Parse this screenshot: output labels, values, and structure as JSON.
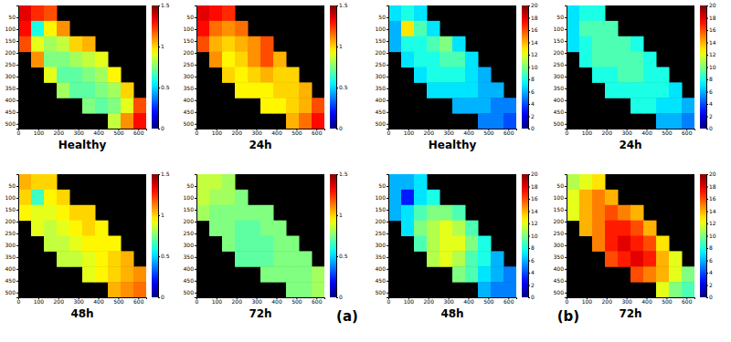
{
  "chart_data": [
    {
      "type": "heatmap",
      "title": "Healthy",
      "annotations": [
        "(a)"
      ],
      "x": [
        32,
        96,
        160,
        224,
        288,
        352,
        416,
        480,
        544,
        608
      ],
      "y": [
        32.5,
        97.5,
        162.5,
        227.5,
        292.5,
        357.5,
        422.5,
        487.5
      ],
      "xlim": [
        0,
        640
      ],
      "ylim": [
        520,
        0
      ],
      "xticks": [
        0,
        100,
        200,
        300,
        400,
        500,
        600
      ],
      "yticks": [
        50,
        100,
        150,
        200,
        250,
        300,
        350,
        400,
        450,
        500
      ],
      "colorbar": {
        "range": [
          0,
          1.5
        ],
        "ticks": [
          0,
          0.5,
          1,
          1.5
        ]
      },
      "values": [
        [
          1.35,
          1.25,
          1.2,
          null,
          null,
          null,
          null,
          null,
          null,
          null
        ],
        [
          1.3,
          0.6,
          0.95,
          1.1,
          null,
          null,
          null,
          null,
          null,
          null
        ],
        [
          1.2,
          0.9,
          0.8,
          0.85,
          1,
          1.05,
          null,
          null,
          null,
          null
        ],
        [
          null,
          1.1,
          0.75,
          0.75,
          0.8,
          0.85,
          0.9,
          null,
          null,
          null
        ],
        [
          null,
          null,
          0.9,
          0.7,
          0.7,
          0.75,
          0.8,
          0.95,
          null,
          null
        ],
        [
          null,
          null,
          null,
          0.8,
          0.7,
          0.7,
          0.75,
          0.8,
          1,
          null
        ],
        [
          null,
          null,
          null,
          null,
          null,
          0.75,
          0.7,
          0.75,
          0.9,
          1.2
        ],
        [
          null,
          null,
          null,
          null,
          null,
          null,
          null,
          0.85,
          1.1,
          1.3
        ]
      ]
    },
    {
      "type": "heatmap",
      "title": "24h",
      "x": [
        32,
        96,
        160,
        224,
        288,
        352,
        416,
        480,
        544,
        608
      ],
      "y": [
        32.5,
        97.5,
        162.5,
        227.5,
        292.5,
        357.5,
        422.5,
        487.5
      ],
      "xlim": [
        0,
        640
      ],
      "ylim": [
        520,
        0
      ],
      "xticks": [
        0,
        100,
        200,
        300,
        400,
        500,
        600
      ],
      "yticks": [
        50,
        100,
        150,
        200,
        250,
        300,
        350,
        400,
        450,
        500
      ],
      "colorbar": {
        "range": [
          0,
          1.5
        ],
        "ticks": [
          0,
          0.5,
          1,
          1.5
        ]
      },
      "values": [
        [
          1.35,
          1.3,
          1.25,
          null,
          null,
          null,
          null,
          null,
          null,
          null
        ],
        [
          1.3,
          1.15,
          1.1,
          1.15,
          null,
          null,
          null,
          null,
          null,
          null
        ],
        [
          1.2,
          1.05,
          1,
          1.05,
          1.1,
          1.2,
          null,
          null,
          null,
          null
        ],
        [
          null,
          1.1,
          0.95,
          1,
          1.1,
          1.2,
          1.05,
          null,
          null,
          null
        ],
        [
          null,
          null,
          1,
          0.95,
          1,
          1.05,
          1,
          1,
          null,
          null
        ],
        [
          null,
          null,
          null,
          0.95,
          0.95,
          0.95,
          1,
          1,
          1.05,
          null
        ],
        [
          null,
          null,
          null,
          null,
          null,
          0.95,
          0.95,
          1,
          1.05,
          1.2
        ],
        [
          null,
          null,
          null,
          null,
          null,
          null,
          null,
          1.05,
          1.15,
          1.3
        ]
      ]
    },
    {
      "type": "heatmap",
      "title": "48h",
      "x": [
        32,
        96,
        160,
        224,
        288,
        352,
        416,
        480,
        544,
        608
      ],
      "y": [
        32.5,
        97.5,
        162.5,
        227.5,
        292.5,
        357.5,
        422.5,
        487.5
      ],
      "xlim": [
        0,
        640
      ],
      "ylim": [
        520,
        0
      ],
      "xticks": [
        0,
        100,
        200,
        300,
        400,
        500,
        600
      ],
      "yticks": [
        50,
        100,
        150,
        200,
        250,
        300,
        350,
        400,
        450,
        500
      ],
      "colorbar": {
        "range": [
          0,
          1.5
        ],
        "ticks": [
          0,
          0.5,
          1,
          1.5
        ]
      },
      "values": [
        [
          1.05,
          1,
          1,
          null,
          null,
          null,
          null,
          null,
          null,
          null
        ],
        [
          1,
          0.65,
          0.95,
          1,
          null,
          null,
          null,
          null,
          null,
          null
        ],
        [
          0.95,
          0.9,
          0.9,
          0.95,
          1,
          1,
          null,
          null,
          null,
          null
        ],
        [
          null,
          0.9,
          0.85,
          0.9,
          0.95,
          1,
          0.95,
          null,
          null,
          null
        ],
        [
          null,
          null,
          0.85,
          0.85,
          0.9,
          0.95,
          0.95,
          0.95,
          null,
          null
        ],
        [
          null,
          null,
          null,
          0.85,
          0.85,
          0.9,
          0.95,
          1,
          1.05,
          null
        ],
        [
          null,
          null,
          null,
          null,
          null,
          0.9,
          0.95,
          1,
          1.05,
          1.1
        ],
        [
          null,
          null,
          null,
          null,
          null,
          null,
          null,
          1.05,
          1.1,
          1.15
        ]
      ]
    },
    {
      "type": "heatmap",
      "title": "72h",
      "x": [
        32,
        96,
        160,
        224,
        288,
        352,
        416,
        480,
        544,
        608
      ],
      "y": [
        32.5,
        97.5,
        162.5,
        227.5,
        292.5,
        357.5,
        422.5,
        487.5
      ],
      "xlim": [
        0,
        640
      ],
      "ylim": [
        520,
        0
      ],
      "xticks": [
        0,
        100,
        200,
        300,
        400,
        500,
        600
      ],
      "yticks": [
        50,
        100,
        150,
        200,
        250,
        300,
        350,
        400,
        450,
        500
      ],
      "colorbar": {
        "range": [
          0,
          1.5
        ],
        "ticks": [
          0,
          0.5,
          1,
          1.5
        ]
      },
      "values": [
        [
          0.85,
          0.85,
          0.8,
          null,
          null,
          null,
          null,
          null,
          null,
          null
        ],
        [
          0.85,
          0.8,
          0.8,
          0.75,
          null,
          null,
          null,
          null,
          null,
          null
        ],
        [
          0.8,
          0.75,
          0.75,
          0.75,
          0.75,
          0.75,
          null,
          null,
          null,
          null
        ],
        [
          null,
          0.75,
          0.75,
          0.7,
          0.7,
          0.75,
          0.75,
          null,
          null,
          null
        ],
        [
          null,
          null,
          0.75,
          0.7,
          0.7,
          0.7,
          0.75,
          0.75,
          null,
          null
        ],
        [
          null,
          null,
          null,
          0.7,
          0.7,
          0.7,
          0.75,
          0.75,
          0.75,
          null
        ],
        [
          null,
          null,
          null,
          null,
          null,
          0.75,
          0.75,
          0.75,
          0.75,
          0.8
        ],
        [
          null,
          null,
          null,
          null,
          null,
          null,
          null,
          0.75,
          0.75,
          0.8
        ]
      ]
    },
    {
      "type": "heatmap",
      "title": "Healthy",
      "annotations": [
        "(b)"
      ],
      "x": [
        32,
        96,
        160,
        224,
        288,
        352,
        416,
        480,
        544,
        608
      ],
      "y": [
        32.5,
        97.5,
        162.5,
        227.5,
        292.5,
        357.5,
        422.5,
        487.5
      ],
      "xlim": [
        0,
        640
      ],
      "ylim": [
        520,
        0
      ],
      "xticks": [
        0,
        100,
        200,
        300,
        400,
        500,
        600
      ],
      "yticks": [
        50,
        100,
        150,
        200,
        250,
        300,
        350,
        400,
        450,
        500
      ],
      "colorbar": {
        "range": [
          0,
          20
        ],
        "ticks": [
          0,
          2,
          4,
          6,
          8,
          10,
          12,
          14,
          16,
          18,
          20
        ]
      },
      "values": [
        [
          7,
          8,
          7,
          null,
          null,
          null,
          null,
          null,
          null,
          null
        ],
        [
          6,
          13,
          9,
          7,
          null,
          null,
          null,
          null,
          null,
          null
        ],
        [
          6,
          8,
          8,
          9,
          10,
          7,
          null,
          null,
          null,
          null
        ],
        [
          null,
          7,
          8,
          8,
          9,
          9,
          7,
          null,
          null,
          null
        ],
        [
          null,
          null,
          7,
          8,
          8,
          8,
          7,
          6,
          null,
          null
        ],
        [
          null,
          null,
          null,
          7,
          7,
          7,
          7,
          6,
          6,
          null
        ],
        [
          null,
          null,
          null,
          null,
          null,
          6,
          6,
          6,
          5,
          5
        ],
        [
          null,
          null,
          null,
          null,
          null,
          null,
          null,
          5,
          5,
          4
        ]
      ]
    },
    {
      "type": "heatmap",
      "title": "24h",
      "x": [
        32,
        96,
        160,
        224,
        288,
        352,
        416,
        480,
        544,
        608
      ],
      "y": [
        32.5,
        97.5,
        162.5,
        227.5,
        292.5,
        357.5,
        422.5,
        487.5
      ],
      "xlim": [
        0,
        640
      ],
      "ylim": [
        520,
        0
      ],
      "xticks": [
        0,
        100,
        200,
        300,
        400,
        500,
        600
      ],
      "yticks": [
        50,
        100,
        150,
        200,
        250,
        300,
        350,
        400,
        450,
        500
      ],
      "colorbar": {
        "range": [
          0,
          20
        ],
        "ticks": [
          0,
          2,
          4,
          6,
          8,
          10,
          12,
          14,
          16,
          18,
          20
        ]
      },
      "values": [
        [
          7,
          8,
          8,
          null,
          null,
          null,
          null,
          null,
          null,
          null
        ],
        [
          7,
          9,
          9,
          9,
          null,
          null,
          null,
          null,
          null,
          null
        ],
        [
          7,
          8,
          9,
          9,
          9,
          8,
          null,
          null,
          null,
          null
        ],
        [
          null,
          8,
          9,
          9,
          9,
          9,
          8,
          null,
          null,
          null
        ],
        [
          null,
          null,
          8,
          8,
          9,
          9,
          8,
          8,
          null,
          null
        ],
        [
          null,
          null,
          null,
          8,
          8,
          8,
          8,
          8,
          7,
          null
        ],
        [
          null,
          null,
          null,
          null,
          null,
          8,
          8,
          7,
          7,
          6
        ],
        [
          null,
          null,
          null,
          null,
          null,
          null,
          null,
          6,
          6,
          5
        ]
      ]
    },
    {
      "type": "heatmap",
      "title": "48h",
      "x": [
        32,
        96,
        160,
        224,
        288,
        352,
        416,
        480,
        544,
        608
      ],
      "y": [
        32.5,
        97.5,
        162.5,
        227.5,
        292.5,
        357.5,
        422.5,
        487.5
      ],
      "xlim": [
        0,
        640
      ],
      "ylim": [
        520,
        0
      ],
      "xticks": [
        0,
        100,
        200,
        300,
        400,
        500,
        600
      ],
      "yticks": [
        50,
        100,
        150,
        200,
        250,
        300,
        350,
        400,
        450,
        500
      ],
      "colorbar": {
        "range": [
          0,
          20
        ],
        "ticks": [
          0,
          2,
          4,
          6,
          8,
          10,
          12,
          14,
          16,
          18,
          20
        ]
      },
      "values": [
        [
          6,
          6,
          7,
          null,
          null,
          null,
          null,
          null,
          null,
          null
        ],
        [
          6,
          3,
          7,
          8,
          null,
          null,
          null,
          null,
          null,
          null
        ],
        [
          6,
          7,
          9,
          10,
          10,
          9,
          null,
          null,
          null,
          null
        ],
        [
          null,
          7,
          10,
          11,
          12,
          11,
          9,
          null,
          null,
          null
        ],
        [
          null,
          null,
          9,
          11,
          12,
          12,
          10,
          8,
          null,
          null
        ],
        [
          null,
          null,
          null,
          11,
          12,
          11,
          9,
          8,
          6,
          null
        ],
        [
          null,
          null,
          null,
          null,
          null,
          10,
          9,
          7,
          6,
          5
        ],
        [
          null,
          null,
          null,
          null,
          null,
          null,
          null,
          6,
          5,
          5
        ]
      ]
    },
    {
      "type": "heatmap",
      "title": "72h",
      "x": [
        32,
        96,
        160,
        224,
        288,
        352,
        416,
        480,
        544,
        608
      ],
      "y": [
        32.5,
        97.5,
        162.5,
        227.5,
        292.5,
        357.5,
        422.5,
        487.5
      ],
      "xlim": [
        0,
        640
      ],
      "ylim": [
        520,
        0
      ],
      "xticks": [
        0,
        100,
        200,
        300,
        400,
        500,
        600
      ],
      "yticks": [
        50,
        100,
        150,
        200,
        250,
        300,
        350,
        400,
        450,
        500
      ],
      "colorbar": {
        "range": [
          0,
          20
        ],
        "ticks": [
          0,
          2,
          4,
          6,
          8,
          10,
          12,
          14,
          16,
          18,
          20
        ]
      },
      "values": [
        [
          11,
          12,
          13,
          null,
          null,
          null,
          null,
          null,
          null,
          null
        ],
        [
          12,
          14,
          15,
          14,
          null,
          null,
          null,
          null,
          null,
          null
        ],
        [
          12,
          14,
          15,
          16,
          15,
          14,
          null,
          null,
          null,
          null
        ],
        [
          null,
          14,
          15,
          17,
          17,
          16,
          14,
          null,
          null,
          null
        ],
        [
          null,
          null,
          15,
          17,
          18,
          17,
          16,
          13,
          null,
          null
        ],
        [
          null,
          null,
          null,
          16,
          17,
          18,
          17,
          14,
          12,
          null
        ],
        [
          null,
          null,
          null,
          null,
          null,
          16,
          15,
          14,
          12,
          10
        ],
        [
          null,
          null,
          null,
          null,
          null,
          null,
          null,
          12,
          10,
          9
        ]
      ]
    }
  ]
}
